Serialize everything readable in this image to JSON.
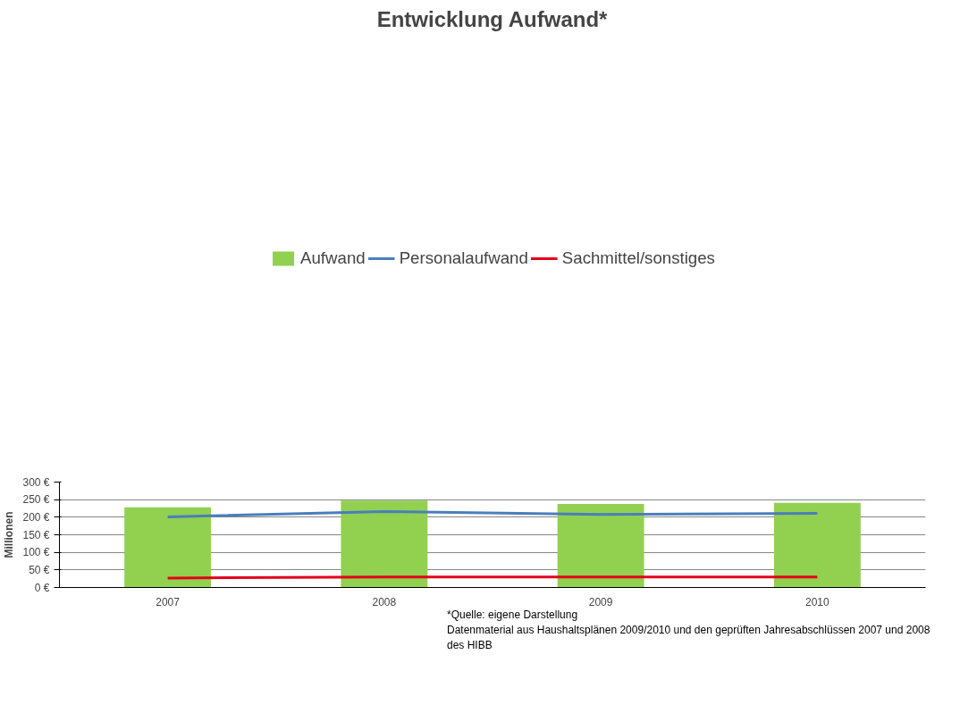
{
  "chart_data": {
    "type": "bar",
    "title": "Entwicklung Aufwand*",
    "ylabel": "Millionen",
    "categories": [
      "2007",
      "2008",
      "2009",
      "2010"
    ],
    "series": [
      {
        "name": "Aufwand",
        "color": "#92d050",
        "values": [
          228,
          247,
          238,
          241
        ]
      },
      {
        "name": "Personalaufwand",
        "type": "line",
        "color": "#4a7ebb",
        "values": [
          201,
          216,
          208,
          211
        ]
      },
      {
        "name": "Sachmittel/sonstiges",
        "type": "line",
        "color": "#e3001b",
        "values": [
          27,
          30,
          30,
          30
        ]
      }
    ],
    "ylim": [
      0,
      300
    ],
    "yticks": [
      {
        "value": 0,
        "label": "0 €"
      },
      {
        "value": 50,
        "label": "50 €"
      },
      {
        "value": 100,
        "label": "100 €"
      },
      {
        "value": 150,
        "label": "150 €"
      },
      {
        "value": 200,
        "label": "200 €"
      },
      {
        "value": 250,
        "label": "250 €"
      },
      {
        "value": 300,
        "label": "300 €"
      }
    ],
    "grid": "y",
    "legend": "top",
    "line_style": "solid",
    "marker": "none",
    "annotations": [
      "*Quelle: eigene Darstellung",
      "Datenmaterial aus Haushaltsplänen 2009/2010 und den geprüften Jahresabschlüssen 2007 und 2008 des HIBB"
    ]
  }
}
